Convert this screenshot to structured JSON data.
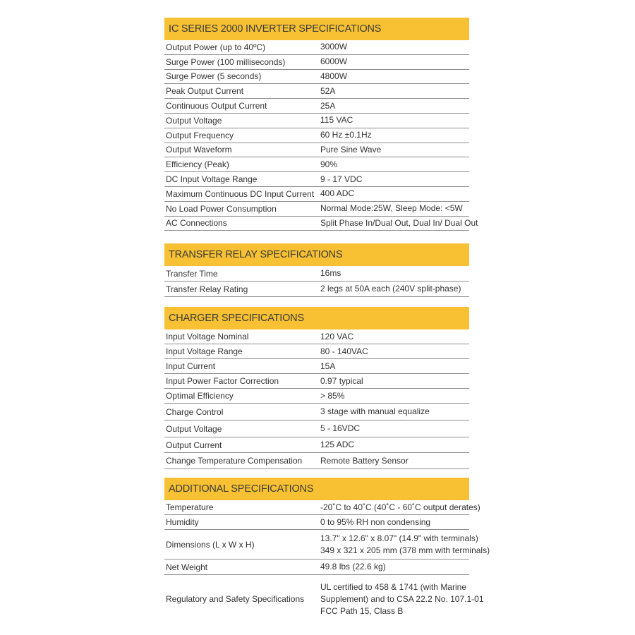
{
  "sections": [
    {
      "title": "IC SERIES 2000 INVERTER SPECIFICATIONS",
      "rows": [
        {
          "label": "Output Power (up to 40ºC)",
          "value": "3000W"
        },
        {
          "label": "Surge Power (100 milliseconds)",
          "value": "6000W"
        },
        {
          "label": "Surge Power (5 seconds)",
          "value": "4800W"
        },
        {
          "label": "Peak Output Current",
          "value": "52A"
        },
        {
          "label": "Continuous Output Current",
          "value": "25A"
        },
        {
          "label": "Output Voltage",
          "value": "115 VAC"
        },
        {
          "label": "Output Frequency",
          "value": "60 Hz ±0.1Hz"
        },
        {
          "label": "Output Waveform",
          "value": "Pure Sine Wave"
        },
        {
          "label": "Efficiency (Peak)",
          "value": "90%"
        },
        {
          "label": "DC Input Voltage Range",
          "value": "9 - 17 VDC"
        },
        {
          "label": "Maximum Continuous DC Input Current",
          "value": "400 ADC"
        },
        {
          "label": "No Load Power Consumption",
          "value": "Normal Mode:25W, Sleep Mode: <5W"
        },
        {
          "label": "AC Connections",
          "value": "Split Phase In/Dual Out, Dual In/ Dual Out"
        }
      ]
    },
    {
      "title": "TRANSFER RELAY SPECIFICATIONS",
      "rows": [
        {
          "label": "Transfer Time",
          "value": "16ms"
        },
        {
          "label": "Transfer Relay Rating",
          "value": "2 legs at 50A each (240V split-phase)"
        }
      ]
    },
    {
      "title": "CHARGER SPECIFICATIONS",
      "rows": [
        {
          "label": "Input Voltage Nominal",
          "value": "120 VAC"
        },
        {
          "label": "Input Voltage Range",
          "value": "80 - 140VAC"
        },
        {
          "label": "Input Current",
          "value": "15A"
        },
        {
          "label": "Input Power Factor Correction",
          "value": "0.97 typical"
        },
        {
          "label": "Optimal Efficiency",
          "value": "> 85%"
        },
        {
          "label": "Charge Control",
          "value": "3 stage with manual equalize"
        },
        {
          "label": "Output Voltage",
          "value": "5 - 16VDC"
        },
        {
          "label": "Output Current",
          "value": "125 ADC"
        },
        {
          "label": "Change Temperature Compensation",
          "value": "Remote Battery Sensor"
        }
      ]
    },
    {
      "title": "ADDITIONAL SPECIFICATIONS",
      "rows": [
        {
          "label": "Temperature",
          "value": "-20˚C to 40˚C (40˚C - 60˚C output derates)"
        },
        {
          "label": "Humidity",
          "value": "0 to 95% RH non condensing"
        },
        {
          "label": "Dimensions (L x W x H)",
          "value": "13.7\" x 12.6\" x 8.07\" (14.9\" with terminals)\n349 x 321 x 205 mm (378 mm with terminals)"
        },
        {
          "label": "Net Weight",
          "value": "49.8 lbs (22.6 kg)"
        },
        {
          "label": "Regulatory and Safety Specifications",
          "value": "UL certified to 458 & 1741 (with Marine\nSupplement) and to CSA 22.2 No. 107.1-01\nFCC Path 15, Class B"
        }
      ]
    }
  ]
}
